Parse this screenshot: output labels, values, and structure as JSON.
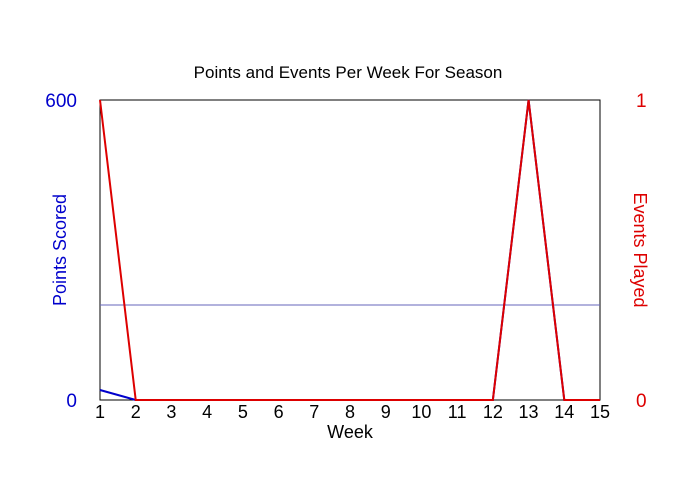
{
  "chart_data": {
    "type": "line",
    "title": "Points and Events Per Week For Season",
    "xlabel": "Week",
    "x": [
      1,
      2,
      3,
      4,
      5,
      6,
      7,
      8,
      9,
      10,
      11,
      12,
      13,
      14,
      15
    ],
    "x_tick_labels": [
      "1",
      "2",
      "3",
      "4",
      "5",
      "6",
      "7",
      "8",
      "9",
      "10",
      "11",
      "12",
      "13",
      "14",
      "15"
    ],
    "xlim": [
      1,
      15
    ],
    "left_axis": {
      "label": "Points Scored",
      "ylim": [
        0,
        600
      ],
      "tick_labels": [
        "0",
        "600"
      ],
      "color": "#0000cc"
    },
    "right_axis": {
      "label": "Events Played",
      "ylim": [
        0,
        1
      ],
      "tick_labels": [
        "0",
        "1"
      ],
      "color": "#dd0000"
    },
    "series": [
      {
        "axis": "left",
        "color": "#0000cc",
        "values": [
          20,
          0,
          0,
          0,
          0,
          0,
          0,
          0,
          0,
          0,
          0,
          0,
          600,
          0,
          0
        ]
      },
      {
        "axis": "right",
        "color": "#dd0000",
        "values": [
          1,
          0,
          0,
          0,
          0,
          0,
          0,
          0,
          0,
          0,
          0,
          0,
          1,
          0,
          0
        ]
      }
    ],
    "reference_line": {
      "axis": "left",
      "value": 190,
      "color": "#6666bb"
    },
    "grid": false,
    "legend": "none"
  }
}
